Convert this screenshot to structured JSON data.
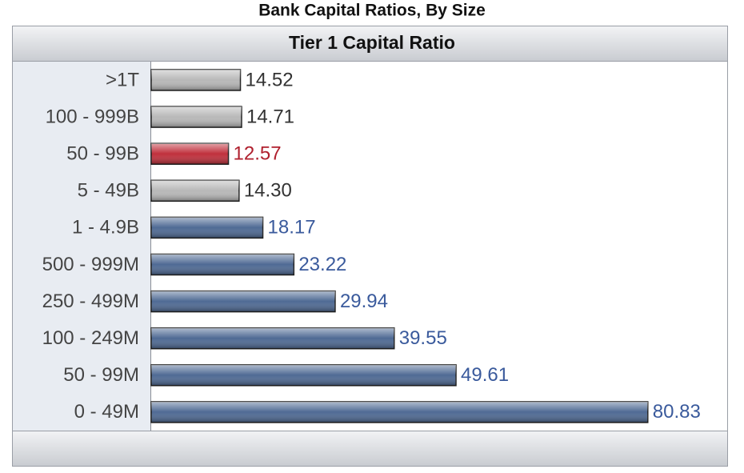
{
  "chart_data": {
    "type": "bar",
    "orientation": "horizontal",
    "title": "Bank Capital Ratios, By Size",
    "subtitle": "Tier 1 Capital Ratio",
    "categories": [
      ">1T",
      "100 - 999B",
      "50 - 99B",
      "5 - 49B",
      "1 - 4.9B",
      "500 - 999M",
      "250 - 499M",
      "100 - 249M",
      "50 - 99M",
      "0 - 49M"
    ],
    "values": [
      14.52,
      14.71,
      12.57,
      14.3,
      18.17,
      23.22,
      29.94,
      39.55,
      49.61,
      80.83
    ],
    "value_labels": [
      "14.52",
      "14.71",
      "12.57",
      "14.30",
      "18.17",
      "23.22",
      "29.94",
      "39.55",
      "49.61",
      "80.83"
    ],
    "colors": [
      "#b8b8b8",
      "#b8b8b8",
      "#c0303c",
      "#b8b8b8",
      "#4f6a94",
      "#4f6a94",
      "#4f6a94",
      "#4f6a94",
      "#4f6a94",
      "#4f6a94"
    ],
    "label_colors": [
      "#333333",
      "#333333",
      "#b0202e",
      "#333333",
      "#3a5a9c",
      "#3a5a9c",
      "#3a5a9c",
      "#3a5a9c",
      "#3a5a9c",
      "#3a5a9c"
    ]
  }
}
